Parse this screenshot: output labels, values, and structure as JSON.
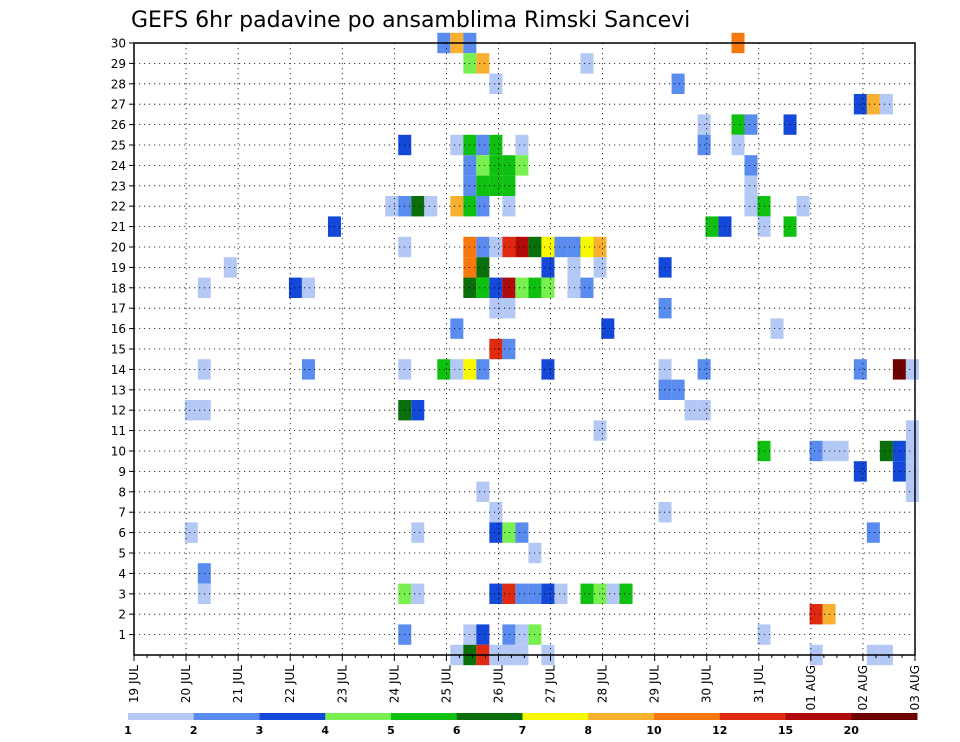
{
  "chart_data": {
    "type": "heatmap",
    "title": "GEFS 6hr padavine po ansamblima Rimski Sancevi",
    "xlabel": "",
    "ylabel": "",
    "x_ticks": [
      "19 JUL",
      "20 JUL",
      "21 JUL",
      "22 JUL",
      "23 JUL",
      "24 JUL",
      "25 JUL",
      "26 JUL",
      "27 JUL",
      "28 JUL",
      "29 JUL",
      "30 JUL",
      "31 JUL",
      "01 AUG",
      "02 AUG",
      "03 AUG"
    ],
    "y_ticks": [
      "1",
      "2",
      "3",
      "4",
      "5",
      "6",
      "7",
      "8",
      "9",
      "10",
      "11",
      "12",
      "13",
      "14",
      "15",
      "16",
      "17",
      "18",
      "19",
      "20",
      "21",
      "22",
      "23",
      "24",
      "25",
      "26",
      "27",
      "28",
      "29",
      "30"
    ],
    "x_range_days": [
      0,
      15
    ],
    "y_range": [
      0,
      30
    ],
    "grid": true,
    "colorbar": {
      "labels": [
        "1",
        "2",
        "3",
        "4",
        "5",
        "6",
        "7",
        "8",
        "10",
        "12",
        "15",
        "20"
      ],
      "colors": [
        "#b4c8f5",
        "#5a8cf0",
        "#1448d8",
        "#78f050",
        "#10c010",
        "#0a6e0a",
        "#f8f800",
        "#f8b030",
        "#f87810",
        "#e02a10",
        "#b00a0a",
        "#6e0000"
      ]
    },
    "cells": [
      {
        "day": 5.95,
        "member": 30,
        "level": 2
      },
      {
        "day": 6.2,
        "member": 30,
        "level": 8
      },
      {
        "day": 6.45,
        "member": 30,
        "level": 2
      },
      {
        "day": 11.6,
        "member": 30,
        "level": 9
      },
      {
        "day": 6.45,
        "member": 29,
        "level": 4
      },
      {
        "day": 6.7,
        "member": 29,
        "level": 8
      },
      {
        "day": 8.7,
        "member": 29,
        "level": 1
      },
      {
        "day": 6.95,
        "member": 28,
        "level": 1
      },
      {
        "day": 10.45,
        "member": 28,
        "level": 2
      },
      {
        "day": 13.95,
        "member": 27,
        "level": 3
      },
      {
        "day": 14.2,
        "member": 27,
        "level": 8
      },
      {
        "day": 14.45,
        "member": 27,
        "level": 1
      },
      {
        "day": 10.95,
        "member": 26,
        "level": 1
      },
      {
        "day": 11.6,
        "member": 26,
        "level": 5
      },
      {
        "day": 11.85,
        "member": 26,
        "level": 2
      },
      {
        "day": 12.6,
        "member": 26,
        "level": 3
      },
      {
        "day": 5.2,
        "member": 25,
        "level": 3
      },
      {
        "day": 6.2,
        "member": 25,
        "level": 1
      },
      {
        "day": 6.45,
        "member": 25,
        "level": 5
      },
      {
        "day": 6.7,
        "member": 25,
        "level": 2
      },
      {
        "day": 6.95,
        "member": 25,
        "level": 5
      },
      {
        "day": 7.45,
        "member": 25,
        "level": 1
      },
      {
        "day": 10.95,
        "member": 25,
        "level": 2
      },
      {
        "day": 11.6,
        "member": 25,
        "level": 1
      },
      {
        "day": 6.45,
        "member": 24,
        "level": 2
      },
      {
        "day": 6.7,
        "member": 24,
        "level": 4
      },
      {
        "day": 6.95,
        "member": 24,
        "level": 5
      },
      {
        "day": 7.2,
        "member": 24,
        "level": 5
      },
      {
        "day": 7.45,
        "member": 24,
        "level": 4
      },
      {
        "day": 11.85,
        "member": 24,
        "level": 2
      },
      {
        "day": 6.45,
        "member": 23,
        "level": 2
      },
      {
        "day": 6.7,
        "member": 23,
        "level": 5
      },
      {
        "day": 6.95,
        "member": 23,
        "level": 5
      },
      {
        "day": 7.2,
        "member": 23,
        "level": 5
      },
      {
        "day": 11.85,
        "member": 23,
        "level": 1
      },
      {
        "day": 4.95,
        "member": 22,
        "level": 1
      },
      {
        "day": 5.2,
        "member": 22,
        "level": 2
      },
      {
        "day": 5.45,
        "member": 22,
        "level": 6
      },
      {
        "day": 5.7,
        "member": 22,
        "level": 1
      },
      {
        "day": 6.2,
        "member": 22,
        "level": 8
      },
      {
        "day": 6.45,
        "member": 22,
        "level": 5
      },
      {
        "day": 6.7,
        "member": 22,
        "level": 2
      },
      {
        "day": 7.2,
        "member": 22,
        "level": 1
      },
      {
        "day": 11.85,
        "member": 22,
        "level": 1
      },
      {
        "day": 12.1,
        "member": 22,
        "level": 5
      },
      {
        "day": 12.85,
        "member": 22,
        "level": 1
      },
      {
        "day": 3.85,
        "member": 21,
        "level": 3
      },
      {
        "day": 11.1,
        "member": 21,
        "level": 5
      },
      {
        "day": 11.35,
        "member": 21,
        "level": 3
      },
      {
        "day": 12.1,
        "member": 21,
        "level": 1
      },
      {
        "day": 12.6,
        "member": 21,
        "level": 5
      },
      {
        "day": 5.2,
        "member": 20,
        "level": 1
      },
      {
        "day": 6.45,
        "member": 20,
        "level": 9
      },
      {
        "day": 6.7,
        "member": 20,
        "level": 2
      },
      {
        "day": 6.95,
        "member": 20,
        "level": 1
      },
      {
        "day": 7.2,
        "member": 20,
        "level": 10
      },
      {
        "day": 7.45,
        "member": 20,
        "level": 11
      },
      {
        "day": 7.7,
        "member": 20,
        "level": 6
      },
      {
        "day": 7.95,
        "member": 20,
        "level": 7
      },
      {
        "day": 8.2,
        "member": 20,
        "level": 2
      },
      {
        "day": 8.45,
        "member": 20,
        "level": 2
      },
      {
        "day": 8.7,
        "member": 20,
        "level": 7
      },
      {
        "day": 8.95,
        "member": 20,
        "level": 8
      },
      {
        "day": 1.85,
        "member": 19,
        "level": 1
      },
      {
        "day": 6.45,
        "member": 19,
        "level": 9
      },
      {
        "day": 6.7,
        "member": 19,
        "level": 6
      },
      {
        "day": 7.95,
        "member": 19,
        "level": 3
      },
      {
        "day": 8.45,
        "member": 19,
        "level": 1
      },
      {
        "day": 8.95,
        "member": 19,
        "level": 1
      },
      {
        "day": 10.2,
        "member": 19,
        "level": 3
      },
      {
        "day": 1.35,
        "member": 18,
        "level": 1
      },
      {
        "day": 3.1,
        "member": 18,
        "level": 3
      },
      {
        "day": 3.35,
        "member": 18,
        "level": 1
      },
      {
        "day": 6.45,
        "member": 18,
        "level": 6
      },
      {
        "day": 6.7,
        "member": 18,
        "level": 5
      },
      {
        "day": 6.95,
        "member": 18,
        "level": 3
      },
      {
        "day": 7.2,
        "member": 18,
        "level": 11
      },
      {
        "day": 7.45,
        "member": 18,
        "level": 4
      },
      {
        "day": 7.7,
        "member": 18,
        "level": 5
      },
      {
        "day": 7.95,
        "member": 18,
        "level": 4
      },
      {
        "day": 8.45,
        "member": 18,
        "level": 1
      },
      {
        "day": 8.7,
        "member": 18,
        "level": 2
      },
      {
        "day": 6.95,
        "member": 17,
        "level": 1
      },
      {
        "day": 7.2,
        "member": 17,
        "level": 1
      },
      {
        "day": 10.2,
        "member": 17,
        "level": 2
      },
      {
        "day": 6.2,
        "member": 16,
        "level": 2
      },
      {
        "day": 9.1,
        "member": 16,
        "level": 3
      },
      {
        "day": 12.35,
        "member": 16,
        "level": 1
      },
      {
        "day": 6.95,
        "member": 15,
        "level": 10
      },
      {
        "day": 7.2,
        "member": 15,
        "level": 2
      },
      {
        "day": 1.35,
        "member": 14,
        "level": 1
      },
      {
        "day": 3.35,
        "member": 14,
        "level": 2
      },
      {
        "day": 5.2,
        "member": 14,
        "level": 1
      },
      {
        "day": 5.95,
        "member": 14,
        "level": 5
      },
      {
        "day": 6.2,
        "member": 14,
        "level": 1
      },
      {
        "day": 6.45,
        "member": 14,
        "level": 7
      },
      {
        "day": 6.7,
        "member": 14,
        "level": 2
      },
      {
        "day": 7.95,
        "member": 14,
        "level": 3
      },
      {
        "day": 10.2,
        "member": 14,
        "level": 1
      },
      {
        "day": 10.95,
        "member": 14,
        "level": 2
      },
      {
        "day": 13.95,
        "member": 14,
        "level": 2
      },
      {
        "day": 14.7,
        "member": 14,
        "level": 12
      },
      {
        "day": 14.95,
        "member": 14,
        "level": 1
      },
      {
        "day": 10.2,
        "member": 13,
        "level": 2
      },
      {
        "day": 10.45,
        "member": 13,
        "level": 2
      },
      {
        "day": 1.1,
        "member": 12,
        "level": 1
      },
      {
        "day": 1.35,
        "member": 12,
        "level": 1
      },
      {
        "day": 5.2,
        "member": 12,
        "level": 6
      },
      {
        "day": 5.45,
        "member": 12,
        "level": 3
      },
      {
        "day": 10.7,
        "member": 12,
        "level": 1
      },
      {
        "day": 10.95,
        "member": 12,
        "level": 1
      },
      {
        "day": 8.95,
        "member": 11,
        "level": 1
      },
      {
        "day": 14.95,
        "member": 11,
        "level": 1
      },
      {
        "day": 12.1,
        "member": 10,
        "level": 5
      },
      {
        "day": 13.1,
        "member": 10,
        "level": 2
      },
      {
        "day": 13.35,
        "member": 10,
        "level": 1
      },
      {
        "day": 13.6,
        "member": 10,
        "level": 1
      },
      {
        "day": 14.45,
        "member": 10,
        "level": 6
      },
      {
        "day": 14.7,
        "member": 10,
        "level": 3
      },
      {
        "day": 14.95,
        "member": 10,
        "level": 1
      },
      {
        "day": 13.95,
        "member": 9,
        "level": 3
      },
      {
        "day": 14.7,
        "member": 9,
        "level": 3
      },
      {
        "day": 14.95,
        "member": 9,
        "level": 1
      },
      {
        "day": 6.7,
        "member": 8,
        "level": 1
      },
      {
        "day": 14.95,
        "member": 8,
        "level": 1
      },
      {
        "day": 6.95,
        "member": 7,
        "level": 1
      },
      {
        "day": 10.2,
        "member": 7,
        "level": 1
      },
      {
        "day": 1.1,
        "member": 6,
        "level": 1
      },
      {
        "day": 5.45,
        "member": 6,
        "level": 1
      },
      {
        "day": 6.95,
        "member": 6,
        "level": 3
      },
      {
        "day": 7.2,
        "member": 6,
        "level": 4
      },
      {
        "day": 7.45,
        "member": 6,
        "level": 2
      },
      {
        "day": 14.2,
        "member": 6,
        "level": 2
      },
      {
        "day": 7.7,
        "member": 5,
        "level": 1
      },
      {
        "day": 1.35,
        "member": 4,
        "level": 2
      },
      {
        "day": 1.35,
        "member": 3,
        "level": 1
      },
      {
        "day": 5.2,
        "member": 3,
        "level": 4
      },
      {
        "day": 5.45,
        "member": 3,
        "level": 1
      },
      {
        "day": 6.95,
        "member": 3,
        "level": 3
      },
      {
        "day": 7.2,
        "member": 3,
        "level": 10
      },
      {
        "day": 7.45,
        "member": 3,
        "level": 2
      },
      {
        "day": 7.7,
        "member": 3,
        "level": 2
      },
      {
        "day": 7.95,
        "member": 3,
        "level": 3
      },
      {
        "day": 8.2,
        "member": 3,
        "level": 1
      },
      {
        "day": 8.7,
        "member": 3,
        "level": 5
      },
      {
        "day": 8.95,
        "member": 3,
        "level": 4
      },
      {
        "day": 9.2,
        "member": 3,
        "level": 1
      },
      {
        "day": 9.45,
        "member": 3,
        "level": 5
      },
      {
        "day": 13.1,
        "member": 2,
        "level": 10
      },
      {
        "day": 13.35,
        "member": 2,
        "level": 8
      },
      {
        "day": 5.2,
        "member": 1,
        "level": 2
      },
      {
        "day": 6.45,
        "member": 1,
        "level": 1
      },
      {
        "day": 6.7,
        "member": 1,
        "level": 3
      },
      {
        "day": 7.2,
        "member": 1,
        "level": 2
      },
      {
        "day": 7.45,
        "member": 1,
        "level": 1
      },
      {
        "day": 7.7,
        "member": 1,
        "level": 4
      },
      {
        "day": 12.1,
        "member": 1,
        "level": 1
      },
      {
        "day": 6.2,
        "member": 0,
        "level": 1
      },
      {
        "day": 6.45,
        "member": 0,
        "level": 6
      },
      {
        "day": 6.7,
        "member": 0,
        "level": 10
      },
      {
        "day": 6.95,
        "member": 0,
        "level": 1
      },
      {
        "day": 7.2,
        "member": 0,
        "level": 1
      },
      {
        "day": 7.45,
        "member": 0,
        "level": 1
      },
      {
        "day": 7.95,
        "member": 0,
        "level": 1
      },
      {
        "day": 13.1,
        "member": 0,
        "level": 1
      },
      {
        "day": 14.2,
        "member": 0,
        "level": 1
      },
      {
        "day": 14.45,
        "member": 0,
        "level": 1
      }
    ]
  }
}
